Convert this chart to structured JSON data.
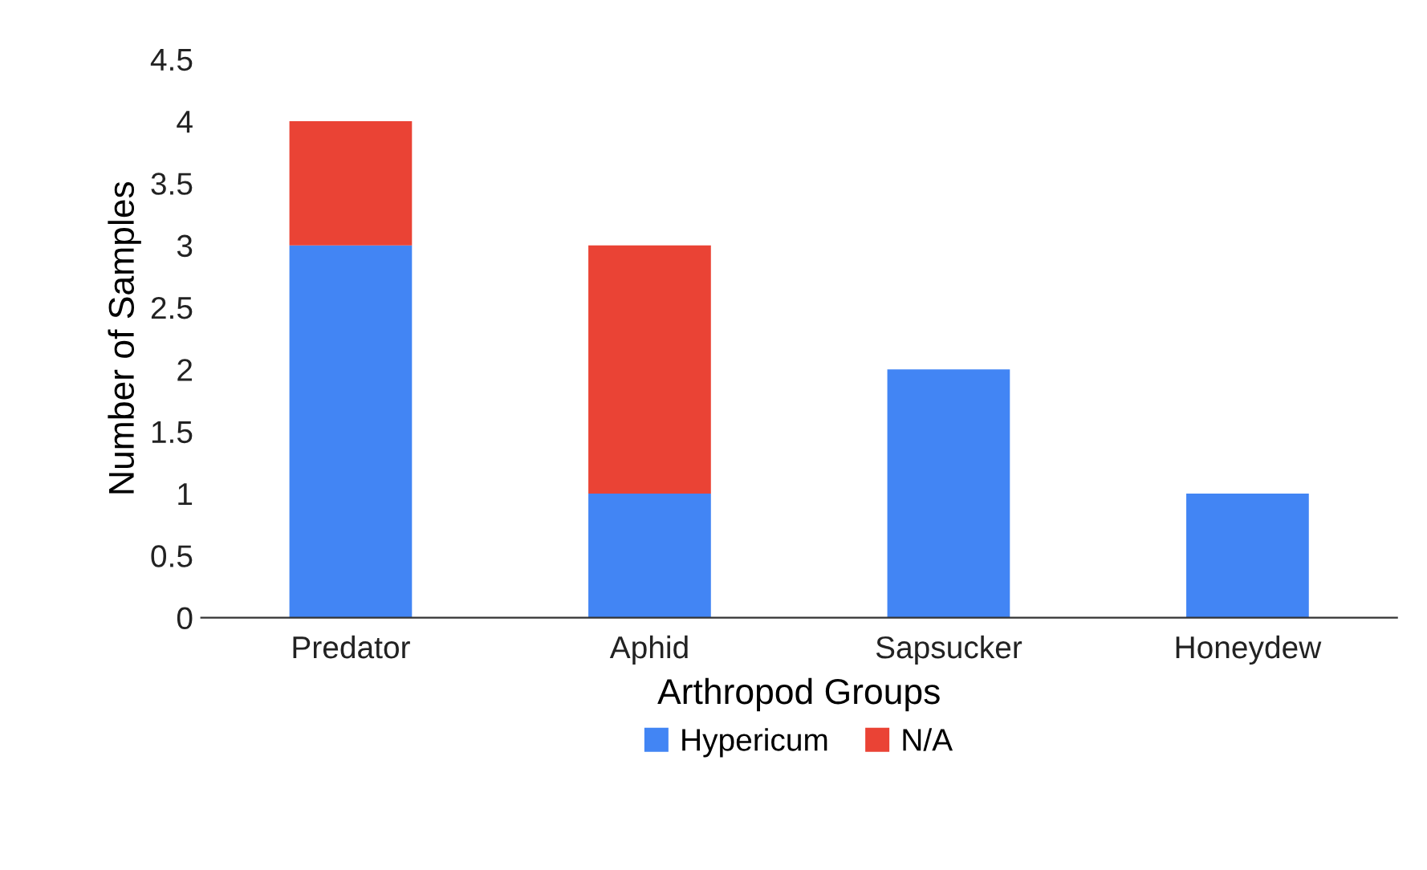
{
  "chart_data": {
    "type": "bar",
    "stacked": true,
    "xlabel": "Arthropod Groups",
    "ylabel": "Number of Samples",
    "categories": [
      "Predator",
      "Aphid",
      "Sapsucker",
      "Honeydew"
    ],
    "series": [
      {
        "name": "Hypericum",
        "color": "#4285f4",
        "values": [
          3,
          1,
          2,
          1
        ]
      },
      {
        "name": "N/A",
        "color": "#ea4335",
        "values": [
          1,
          2,
          0,
          0
        ]
      }
    ],
    "ylim": [
      0,
      4.5
    ],
    "yticks": [
      0,
      0.5,
      1,
      1.5,
      2,
      2.5,
      3,
      3.5,
      4,
      4.5
    ],
    "grid": false,
    "legend": "bottom"
  }
}
